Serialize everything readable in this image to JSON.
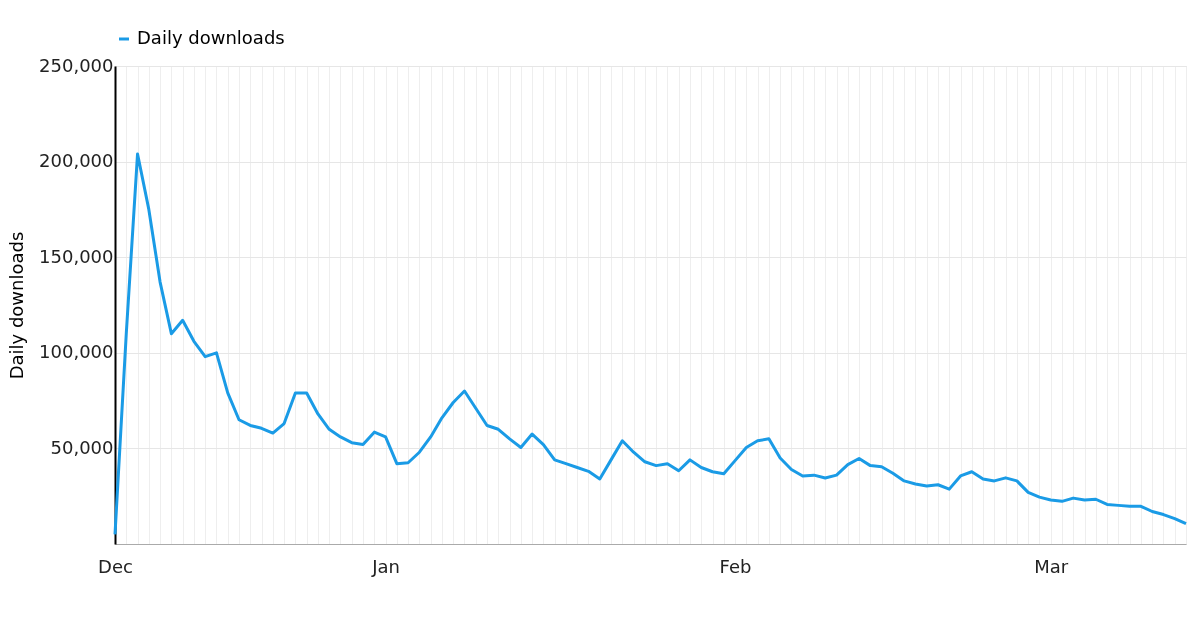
{
  "chart_data": {
    "type": "line",
    "ylabel": "Daily downloads",
    "categories": [
      "Dec",
      null,
      null,
      null,
      null,
      null,
      null,
      null,
      null,
      null,
      null,
      null,
      null,
      null,
      null,
      null,
      null,
      null,
      null,
      null,
      null,
      null,
      null,
      null,
      "Jan",
      null,
      null,
      null,
      null,
      null,
      null,
      null,
      null,
      null,
      null,
      null,
      null,
      null,
      null,
      null,
      null,
      null,
      null,
      null,
      null,
      null,
      null,
      null,
      null,
      null,
      null,
      null,
      null,
      null,
      null,
      "Feb",
      null,
      null,
      null,
      null,
      null,
      null,
      null,
      null,
      null,
      null,
      null,
      null,
      null,
      null,
      null,
      null,
      null,
      null,
      null,
      null,
      null,
      null,
      null,
      null,
      null,
      null,
      null,
      "Mar",
      null,
      null,
      null,
      null,
      null,
      null,
      null,
      null,
      null,
      null,
      null,
      null
    ],
    "series": [
      {
        "name": "Daily downloads",
        "color": "#1a9be6",
        "values": [
          5000,
          110000,
          204000,
          175000,
          137000,
          110000,
          117000,
          106000,
          98000,
          100000,
          79000,
          65000,
          62000,
          60500,
          58000,
          63000,
          79000,
          79000,
          68000,
          60000,
          56000,
          53000,
          52000,
          58500,
          56000,
          42000,
          42500,
          48000,
          56000,
          66000,
          74000,
          80000,
          71000,
          62000,
          60000,
          55000,
          50500,
          57500,
          52000,
          44000,
          42000,
          40000,
          38000,
          34000,
          44000,
          54000,
          48000,
          43000,
          41000,
          42000,
          38300,
          44000,
          40000,
          37800,
          36700,
          43600,
          50500,
          54000,
          55000,
          45000,
          39000,
          35600,
          36000,
          34500,
          36000,
          41500,
          44700,
          41000,
          40400,
          37000,
          33000,
          31400,
          30300,
          31000,
          28700,
          35600,
          37800,
          34000,
          33000,
          34600,
          33000,
          27000,
          24500,
          23000,
          22300,
          24000,
          23000,
          23400,
          20700,
          20200,
          19700,
          19700,
          17000,
          15400,
          13300,
          10600
        ]
      }
    ],
    "ylim": [
      0,
      250000
    ],
    "yticks": [
      {
        "value": 50000,
        "label": "50,000"
      },
      {
        "value": 100000,
        "label": "100,000"
      },
      {
        "value": 150000,
        "label": "150,000"
      },
      {
        "value": 200000,
        "label": "200,000"
      },
      {
        "value": 250000,
        "label": "250,000"
      }
    ],
    "grid": true,
    "legend": "top",
    "line_style": "solid",
    "marker": "none"
  }
}
